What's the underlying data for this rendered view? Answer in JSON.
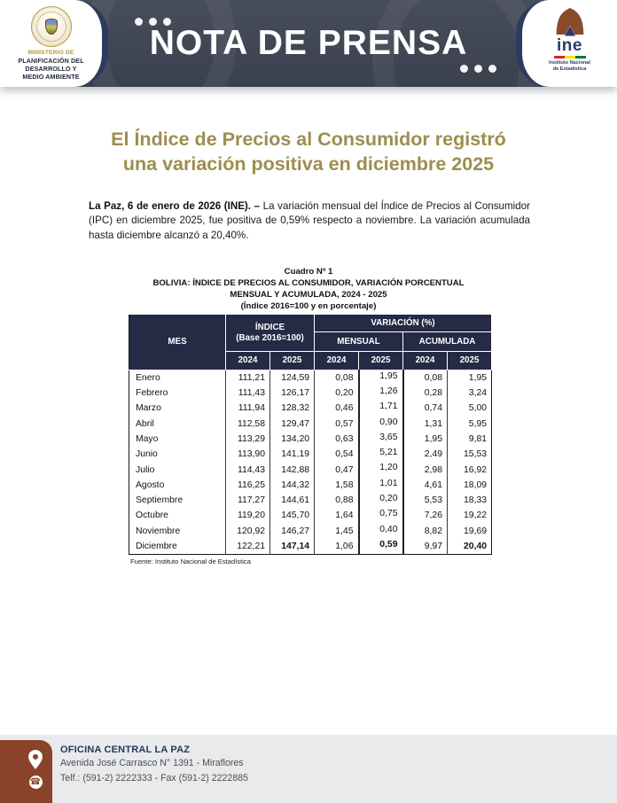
{
  "header": {
    "ministry": {
      "line1": "MINISTERIO DE",
      "line2": "PLANIFICACIÓN DEL",
      "line3": "DESARROLLO Y",
      "line4": "MEDIO AMBIENTE"
    },
    "banner_title": "NOTA DE PRENSA",
    "ine": {
      "wordmark": "ine",
      "caption_line1": "Instituto Nacional",
      "caption_line2": "de Estadística"
    }
  },
  "title": {
    "line1": "El Índice de Precios al Consumidor registró",
    "line2": "una variación positiva en diciembre 2025"
  },
  "intro": {
    "lead": "La Paz, 6 de enero de 2026 (INE). –",
    "body": "La variación mensual del Índice de Precios al Consumidor (IPC) en diciembre 2025, fue positiva de 0,59% respecto a noviembre. La variación acumulada hasta diciembre alcanzó a 20,40%."
  },
  "table": {
    "caption": {
      "line1": "Cuadro Nº 1",
      "line2": "BOLIVIA: ÍNDICE DE PRECIOS AL CONSUMIDOR, VARIACIÓN PORCENTUAL",
      "line3": "MENSUAL Y ACUMULADA, 2024 - 2025",
      "line4": "(Índice 2016=100 y en porcentaje)"
    },
    "header": {
      "mes": "MES",
      "indice_line1": "ÍNDICE",
      "indice_line2": "(Base 2016=100)",
      "variacion": "VARIACIÓN (%)",
      "mensual": "MENSUAL",
      "acumulada": "ACUMULADA",
      "years": [
        "2024",
        "2025",
        "2024",
        "2025",
        "2024",
        "2025"
      ]
    },
    "rows": [
      {
        "mes": "Enero",
        "values": [
          "111,21",
          "124,59",
          "0,08",
          "1,95",
          "0,08",
          "1,95"
        ]
      },
      {
        "mes": "Febrero",
        "values": [
          "111,43",
          "126,17",
          "0,20",
          "1,26",
          "0,28",
          "3,24"
        ]
      },
      {
        "mes": "Marzo",
        "values": [
          "111,94",
          "128,32",
          "0,46",
          "1,71",
          "0,74",
          "5,00"
        ]
      },
      {
        "mes": "Abril",
        "values": [
          "112,58",
          "129,47",
          "0,57",
          "0,90",
          "1,31",
          "5,95"
        ]
      },
      {
        "mes": "Mayo",
        "values": [
          "113,29",
          "134,20",
          "0,63",
          "3,65",
          "1,95",
          "9,81"
        ]
      },
      {
        "mes": "Junio",
        "values": [
          "113,90",
          "141,19",
          "0,54",
          "5,21",
          "2,49",
          "15,53"
        ]
      },
      {
        "mes": "Julio",
        "values": [
          "114,43",
          "142,88",
          "0,47",
          "1,20",
          "2,98",
          "16,92"
        ]
      },
      {
        "mes": "Agosto",
        "values": [
          "116,25",
          "144,32",
          "1,58",
          "1,01",
          "4,61",
          "18,09"
        ]
      },
      {
        "mes": "Septiembre",
        "values": [
          "117,27",
          "144,61",
          "0,88",
          "0,20",
          "5,53",
          "18,33"
        ]
      },
      {
        "mes": "Octubre",
        "values": [
          "119,20",
          "145,70",
          "1,64",
          "0,75",
          "7,26",
          "19,22"
        ]
      },
      {
        "mes": "Noviembre",
        "values": [
          "120,92",
          "146,27",
          "1,45",
          "0,40",
          "8,82",
          "19,69"
        ]
      },
      {
        "mes": "Diciembre",
        "values": [
          "122,21",
          "147,14",
          "1,06",
          "0,59",
          "9,97",
          "20,40"
        ],
        "bold_values": [
          1,
          3,
          5
        ]
      }
    ],
    "source": "Fuente: Instituto Nacional de Estadística"
  },
  "footer": {
    "office_title": "OFICINA CENTRAL LA PAZ",
    "address": "Avenida José Carrasco N° 1391 - Miraflores",
    "phone": "Telf.: (591-2) 2222333 - Fax (591-2) 2222885"
  },
  "colors": {
    "title_gold": "#9d8e4e",
    "table_header_navy": "#252a45",
    "banner_slate": "#3f4553",
    "curve_navy": "#2d3b5c",
    "footer_brown": "#8a432a",
    "footer_bg": "#e8eaec"
  }
}
